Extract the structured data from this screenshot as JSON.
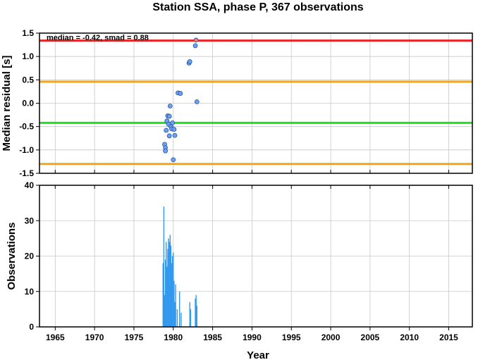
{
  "chart_data": [
    {
      "type": "scatter",
      "title": "Station SSA, phase P, 367 observations",
      "ylabel": "Median residual [s]",
      "annotation": "median = -0.42, smad = 0.88",
      "xlim": [
        1963,
        2018
      ],
      "ylim": [
        -1.5,
        1.5
      ],
      "yticks": [
        "1.5",
        "1.0",
        "0.5",
        "0.0",
        "-0.5",
        "-1.0",
        "-1.5"
      ],
      "grid": true,
      "hlines": [
        {
          "value": 1.34,
          "color": "#ee2222"
        },
        {
          "value": 0.46,
          "color": "#f2a516"
        },
        {
          "value": -0.42,
          "color": "#22dd22"
        },
        {
          "value": -1.3,
          "color": "#f2a516"
        }
      ],
      "point_color": "#6fa0ee",
      "outlier_color": "#f07a6a",
      "points": [
        {
          "x": 1978.9,
          "y": -0.88
        },
        {
          "x": 1979.0,
          "y": -0.95
        },
        {
          "x": 1979.0,
          "y": -1.02
        },
        {
          "x": 1979.1,
          "y": -0.58
        },
        {
          "x": 1979.2,
          "y": -0.38
        },
        {
          "x": 1979.3,
          "y": -0.27
        },
        {
          "x": 1979.4,
          "y": -0.45
        },
        {
          "x": 1979.5,
          "y": -0.28
        },
        {
          "x": 1979.5,
          "y": -0.7
        },
        {
          "x": 1979.6,
          "y": -0.06
        },
        {
          "x": 1979.7,
          "y": -0.5
        },
        {
          "x": 1979.8,
          "y": -0.55
        },
        {
          "x": 1979.9,
          "y": -0.42
        },
        {
          "x": 1980.0,
          "y": -1.21
        },
        {
          "x": 1980.1,
          "y": -0.56
        },
        {
          "x": 1980.2,
          "y": -0.69
        },
        {
          "x": 1980.6,
          "y": 0.22
        },
        {
          "x": 1980.9,
          "y": 0.21
        },
        {
          "x": 1982.0,
          "y": 0.86
        },
        {
          "x": 1982.1,
          "y": 0.89
        },
        {
          "x": 1982.8,
          "y": 1.23
        },
        {
          "x": 1982.9,
          "y": 1.35,
          "outlier": true
        },
        {
          "x": 1983.0,
          "y": 0.03
        }
      ]
    },
    {
      "type": "bar",
      "ylabel": "Observations",
      "xlabel": "Year",
      "xlim": [
        1963,
        2018
      ],
      "ylim": [
        0,
        40
      ],
      "xticks": [
        "1965",
        "1970",
        "1975",
        "1980",
        "1985",
        "1990",
        "1995",
        "2000",
        "2005",
        "2010",
        "2015"
      ],
      "yticks": [
        "40",
        "30",
        "20",
        "10",
        "0"
      ],
      "grid": true,
      "bar_color": "#3399ee",
      "bars": [
        {
          "x": 1978.7,
          "y": 18
        },
        {
          "x": 1978.8,
          "y": 34
        },
        {
          "x": 1978.9,
          "y": 9
        },
        {
          "x": 1979.0,
          "y": 19
        },
        {
          "x": 1979.1,
          "y": 24
        },
        {
          "x": 1979.2,
          "y": 17
        },
        {
          "x": 1979.3,
          "y": 22
        },
        {
          "x": 1979.4,
          "y": 25
        },
        {
          "x": 1979.5,
          "y": 24
        },
        {
          "x": 1979.6,
          "y": 26
        },
        {
          "x": 1979.7,
          "y": 23
        },
        {
          "x": 1979.8,
          "y": 18
        },
        {
          "x": 1979.9,
          "y": 20
        },
        {
          "x": 1980.0,
          "y": 21
        },
        {
          "x": 1980.1,
          "y": 13
        },
        {
          "x": 1980.2,
          "y": 7
        },
        {
          "x": 1980.3,
          "y": 12
        },
        {
          "x": 1980.5,
          "y": 5
        },
        {
          "x": 1980.8,
          "y": 10
        },
        {
          "x": 1981.0,
          "y": 4
        },
        {
          "x": 1982.1,
          "y": 7
        },
        {
          "x": 1982.2,
          "y": 5
        },
        {
          "x": 1982.8,
          "y": 8
        },
        {
          "x": 1982.9,
          "y": 9
        },
        {
          "x": 1983.0,
          "y": 6
        }
      ]
    }
  ]
}
